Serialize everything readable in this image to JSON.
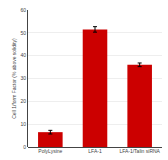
{
  "chart_data": {
    "type": "bar",
    "categories": [
      "PolyLysine",
      "LFA-1",
      "LFA-1/Talin siRNA"
    ],
    "values": [
      6.5,
      51.5,
      36.0
    ],
    "errors": [
      0.8,
      1.2,
      0.8
    ],
    "color": "#cc0000",
    "ylabel": "Cell 1/form Factor (% above solidity)",
    "ylim": [
      0,
      60
    ],
    "yticks": [
      0,
      10,
      20,
      30,
      40,
      50,
      60
    ],
    "grid": true
  }
}
